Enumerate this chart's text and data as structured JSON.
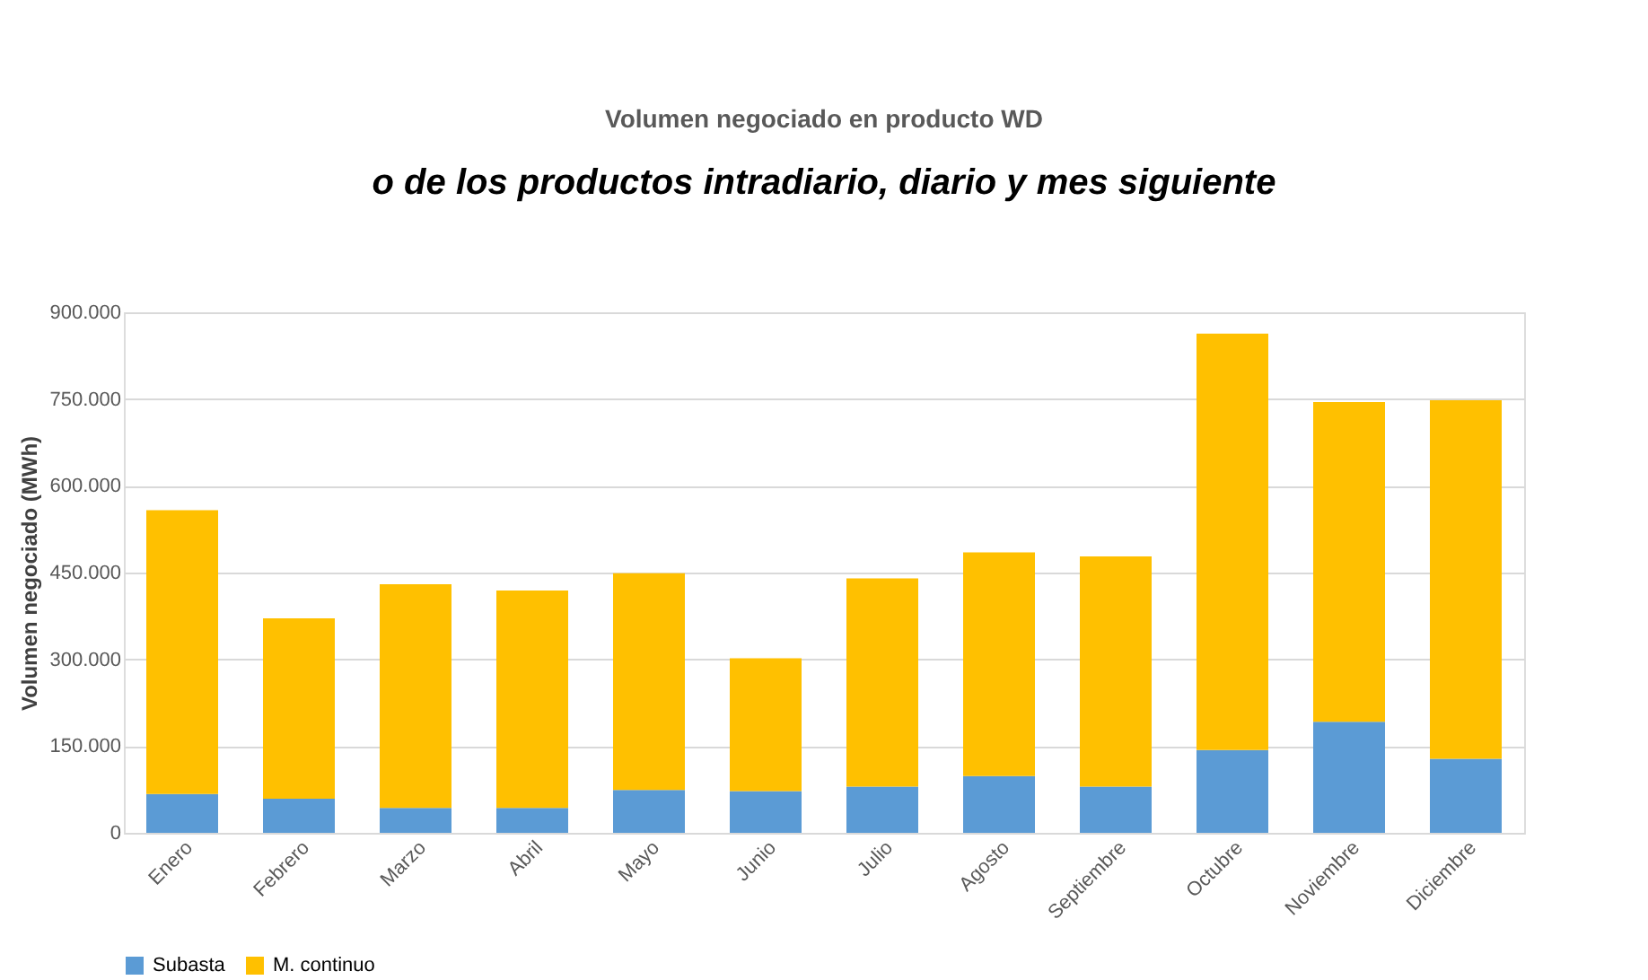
{
  "chart_data": {
    "type": "bar",
    "title": "Volumen negociado en producto WD",
    "ylabel": "Volumen negociado (MWh)",
    "annotations": [
      "o de los productos intradiario, diario y mes siguiente"
    ],
    "categories": [
      "Enero",
      "Febrero",
      "Marzo",
      "Abril",
      "Mayo",
      "Junio",
      "Julio",
      "Agosto",
      "Septiembre",
      "Octubre",
      "Noviembre",
      "Diciembre"
    ],
    "stacked": true,
    "series": [
      {
        "name": "Subasta",
        "color": "#5b9bd5",
        "values": [
          67000,
          59000,
          43000,
          43000,
          74000,
          72000,
          80000,
          98000,
          80000,
          143000,
          192000,
          128000
        ]
      },
      {
        "name": "M. continuo",
        "color": "#ffc000",
        "values": [
          491000,
          312000,
          387000,
          376000,
          375000,
          230000,
          360000,
          387000,
          398000,
          720000,
          553000,
          620000
        ]
      }
    ],
    "ylim": [
      0,
      900000
    ],
    "yticks": [
      {
        "value": 0,
        "label": "0"
      },
      {
        "value": 150000,
        "label": "150.000"
      },
      {
        "value": 300000,
        "label": "300.000"
      },
      {
        "value": 450000,
        "label": "450.000"
      },
      {
        "value": 600000,
        "label": "600.000"
      },
      {
        "value": 750000,
        "label": "750.000"
      },
      {
        "value": 900000,
        "label": "900.000"
      }
    ],
    "grid": "y",
    "legend": "bottom"
  }
}
